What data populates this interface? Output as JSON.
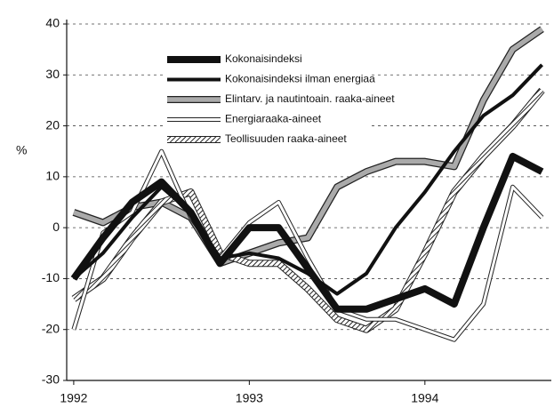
{
  "chart_data": {
    "type": "line",
    "y_label": "%",
    "x": [
      1992.0,
      1992.167,
      1992.333,
      1992.5,
      1992.667,
      1992.833,
      1993.0,
      1993.167,
      1993.333,
      1993.5,
      1993.667,
      1993.833,
      1994.0,
      1994.167,
      1994.333,
      1994.5,
      1994.667
    ],
    "xlim": [
      1991.96,
      1994.72
    ],
    "xticks": [
      1992,
      1993,
      1994
    ],
    "ylim": [
      -30,
      40
    ],
    "yticks": [
      -30,
      -20,
      -10,
      0,
      10,
      20,
      30,
      40
    ],
    "grid": true,
    "legend": "upper left",
    "series": [
      {
        "name": "Kokonaisindeksi",
        "color": "#111111",
        "style": "thick",
        "values": [
          -10,
          -2,
          5,
          9,
          3,
          -7,
          0,
          0,
          -8,
          -16,
          -16,
          -14,
          -12,
          -15,
          0,
          14,
          11
        ]
      },
      {
        "name": "Kokonaisindeksi ilman energiaa",
        "color": "#111111",
        "style": "medium",
        "values": [
          -10,
          -5,
          2,
          8,
          3,
          -6,
          -5,
          -6,
          -9,
          -13,
          -9,
          0,
          7,
          15,
          22,
          26,
          32
        ]
      },
      {
        "name": "Elintarv. ja nautintoain. raaka-aineet",
        "color": "#aaaaaa",
        "style": "outlined",
        "values": [
          3,
          1,
          4,
          5,
          2,
          -7,
          -5,
          -3,
          -2,
          8,
          11,
          13,
          13,
          12,
          25,
          35,
          39
        ]
      },
      {
        "name": "Energiaraaka-aineet",
        "color": "#ffffff",
        "style": "double",
        "values": [
          -20,
          -1,
          3,
          15,
          2,
          -6,
          1,
          5,
          -6,
          -16,
          -18,
          -18,
          -20,
          -22,
          -15,
          8,
          2
        ]
      },
      {
        "name": "Teollisuuden raaka-aineet",
        "color": "#999999",
        "style": "hatched",
        "values": [
          -14,
          -10,
          -2,
          5,
          7,
          -5,
          -7,
          -7,
          -12,
          -18,
          -20,
          -16,
          -5,
          7,
          14,
          20,
          27
        ]
      }
    ]
  }
}
